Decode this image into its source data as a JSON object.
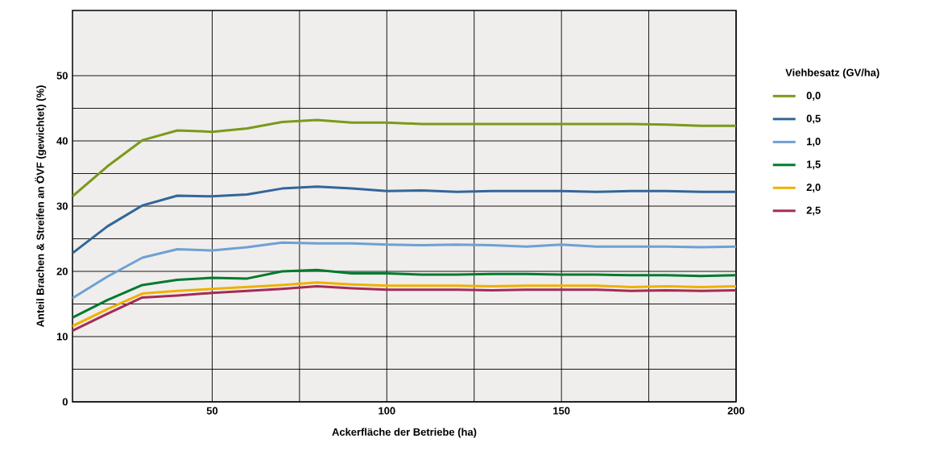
{
  "chart_data": {
    "type": "line",
    "xlabel": "Ackerfläche der Betriebe (ha)",
    "ylabel": "Anteil Brachen & Streifen an ÖVF (gewichtet) (%)",
    "legend_title": "Viehbesatz (GV/ha)",
    "x": [
      10,
      20,
      30,
      40,
      50,
      60,
      70,
      80,
      90,
      100,
      110,
      120,
      130,
      140,
      150,
      160,
      170,
      180,
      190,
      200
    ],
    "series": [
      {
        "name": "0,0",
        "color": "#7a9a1a",
        "values": [
          31.5,
          36.1,
          40.1,
          41.6,
          41.4,
          41.9,
          42.9,
          43.2,
          42.8,
          42.8,
          42.6,
          42.6,
          42.6,
          42.6,
          42.6,
          42.6,
          42.6,
          42.5,
          42.3,
          42.3
        ]
      },
      {
        "name": "0,5",
        "color": "#336699",
        "values": [
          22.8,
          26.9,
          30.1,
          31.6,
          31.5,
          31.8,
          32.7,
          33.0,
          32.7,
          32.3,
          32.4,
          32.2,
          32.3,
          32.3,
          32.3,
          32.2,
          32.3,
          32.3,
          32.2,
          32.2
        ]
      },
      {
        "name": "1,0",
        "color": "#6fa0d4",
        "values": [
          15.9,
          19.2,
          22.1,
          23.4,
          23.2,
          23.7,
          24.4,
          24.3,
          24.3,
          24.1,
          24.0,
          24.1,
          24.0,
          23.8,
          24.1,
          23.8,
          23.8,
          23.8,
          23.7,
          23.8
        ]
      },
      {
        "name": "1,5",
        "color": "#007a2e",
        "values": [
          12.9,
          15.6,
          17.9,
          18.7,
          19.0,
          18.9,
          20.0,
          20.2,
          19.7,
          19.7,
          19.5,
          19.5,
          19.6,
          19.6,
          19.5,
          19.5,
          19.4,
          19.4,
          19.3,
          19.4
        ]
      },
      {
        "name": "2,0",
        "color": "#f0b000",
        "values": [
          11.6,
          14.2,
          16.6,
          17.0,
          17.3,
          17.6,
          17.9,
          18.3,
          18.0,
          17.8,
          17.8,
          17.8,
          17.7,
          17.8,
          17.8,
          17.8,
          17.6,
          17.7,
          17.6,
          17.7
        ]
      },
      {
        "name": "2,5",
        "color": "#a52a58",
        "values": [
          10.9,
          13.5,
          16.0,
          16.3,
          16.7,
          17.0,
          17.3,
          17.7,
          17.4,
          17.2,
          17.2,
          17.2,
          17.1,
          17.2,
          17.2,
          17.2,
          17.0,
          17.1,
          17.0,
          17.1
        ]
      }
    ],
    "xlim": [
      10,
      200
    ],
    "ylim": [
      0,
      60
    ],
    "xticks": [
      50,
      100,
      150,
      200
    ],
    "yticks": [
      0,
      10,
      20,
      30,
      40,
      50
    ],
    "grid": true,
    "legend": "right",
    "marker": "none",
    "line_style": "solid"
  }
}
